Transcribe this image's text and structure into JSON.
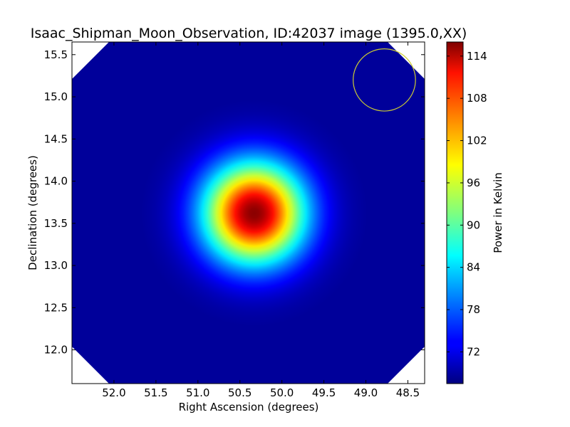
{
  "chart_data": {
    "type": "heatmap",
    "title": "Isaac_Shipman_Moon_Observation, ID:42037 image (1395.0,XX)",
    "xlabel": "Right Ascension (degrees)",
    "ylabel": "Declination (degrees)",
    "xlim": [
      52.5,
      48.3
    ],
    "ylim": [
      11.6,
      15.65
    ],
    "x_ticks": [
      52.0,
      51.5,
      51.0,
      50.5,
      50.0,
      49.5,
      49.0,
      48.5
    ],
    "x_tick_labels": [
      "52.0",
      "51.5",
      "51.0",
      "50.5",
      "50.0",
      "49.5",
      "49.0",
      "48.5"
    ],
    "y_ticks": [
      12.0,
      12.5,
      13.0,
      13.5,
      14.0,
      14.5,
      15.0,
      15.5
    ],
    "y_tick_labels": [
      "12.0",
      "12.5",
      "13.0",
      "13.5",
      "14.0",
      "14.5",
      "15.0",
      "15.5"
    ],
    "colormap": "jet",
    "source": {
      "ra": 50.33,
      "dec": 13.62,
      "peak_value": 115.5,
      "sigma_deg": 0.42
    },
    "background_value": 68.5,
    "beam_circle": {
      "ra": 48.78,
      "dec": 15.2,
      "radius_deg": 0.37,
      "color": "#cccc33"
    },
    "colorbar": {
      "label": "Power in Kelvin",
      "vmin": 67.5,
      "vmax": 116.0,
      "ticks": [
        72,
        78,
        84,
        90,
        96,
        102,
        108,
        114
      ],
      "tick_labels": [
        "72",
        "78",
        "84",
        "90",
        "96",
        "102",
        "108",
        "114"
      ]
    }
  }
}
